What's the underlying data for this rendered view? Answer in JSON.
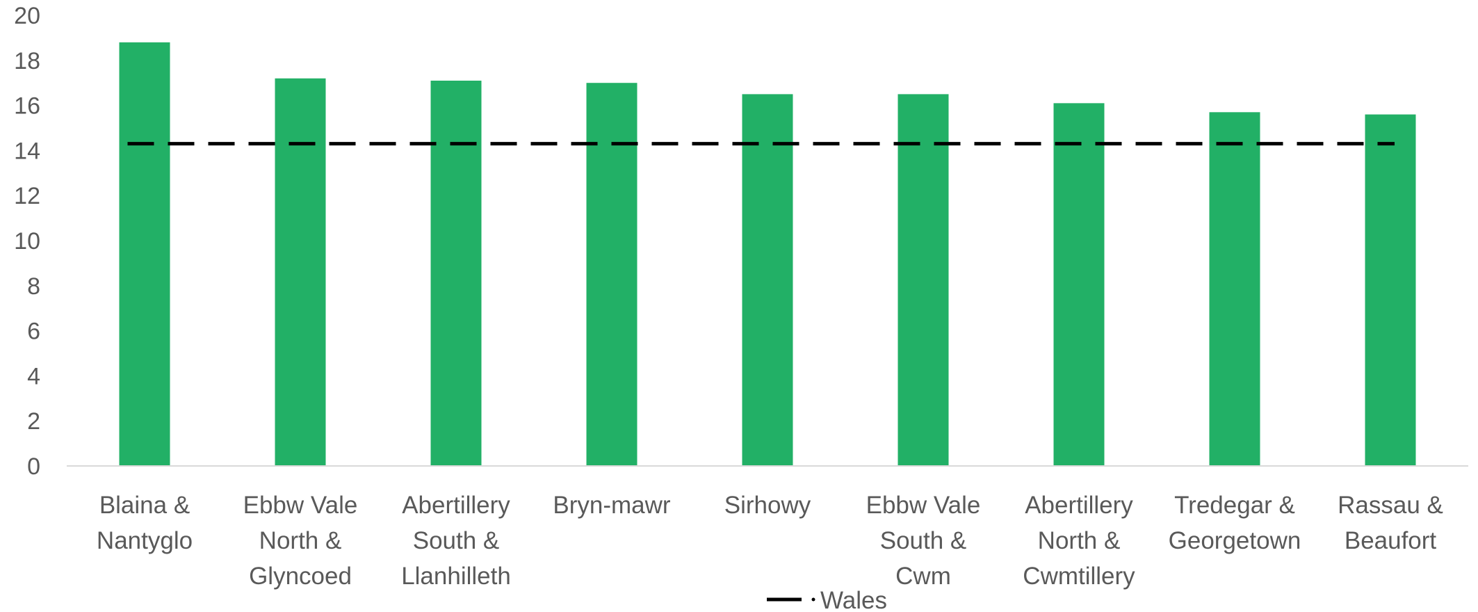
{
  "chart_data": {
    "type": "bar",
    "title": "",
    "xlabel": "",
    "ylabel": "",
    "ylim": [
      0,
      20
    ],
    "yticks": [
      0,
      2,
      4,
      6,
      8,
      10,
      12,
      14,
      16,
      18,
      20
    ],
    "grid": false,
    "legend_position": "bottom",
    "categories": [
      [
        "Blaina &",
        "Nantyglo"
      ],
      [
        "Ebbw Vale",
        "North &",
        "Glyncoed"
      ],
      [
        "Abertillery",
        "South &",
        "Llanhilleth"
      ],
      [
        "Bryn-mawr"
      ],
      [
        "Sirhowy"
      ],
      [
        "Ebbw Vale",
        "South &",
        "Cwm"
      ],
      [
        "Abertillery",
        "North &",
        "Cwmtillery"
      ],
      [
        "Tredegar &",
        "Georgetown"
      ],
      [
        "Rassau &",
        "Beaufort"
      ]
    ],
    "values": [
      18.8,
      17.2,
      17.1,
      17.0,
      16.5,
      16.5,
      16.1,
      15.7,
      15.6
    ],
    "bar_color": "#22B066",
    "reference_line": {
      "name": "Wales",
      "value": 14.3,
      "color": "#000000",
      "style": "dashed"
    }
  }
}
